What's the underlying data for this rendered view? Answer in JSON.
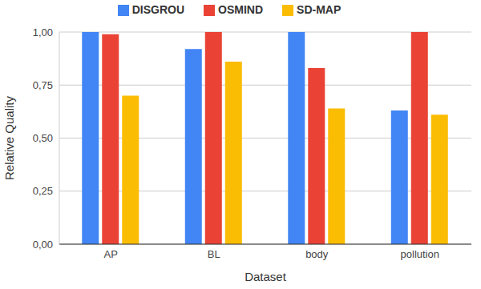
{
  "chart_data": {
    "type": "bar",
    "x_label": "Dataset",
    "y_label": "Relative Quality",
    "categories": [
      "AP",
      "BL",
      "body",
      "pollution"
    ],
    "series": [
      {
        "name": "DISGROU",
        "color": "#4285f4",
        "values": [
          1.0,
          0.92,
          1.0,
          0.63
        ]
      },
      {
        "name": "OSMIND",
        "color": "#ea4335",
        "values": [
          0.99,
          1.0,
          0.83,
          1.0
        ]
      },
      {
        "name": "SD-MAP",
        "color": "#fbbc04",
        "values": [
          0.7,
          0.86,
          0.64,
          0.61
        ]
      }
    ],
    "ylim": [
      0,
      1
    ],
    "yticks": [
      {
        "value": 0,
        "label": "0,00"
      },
      {
        "value": 0.25,
        "label": "0,25"
      },
      {
        "value": 0.5,
        "label": "0,50"
      },
      {
        "value": 0.75,
        "label": "0,75"
      },
      {
        "value": 1,
        "label": "1,00"
      }
    ],
    "grid": true,
    "legend": "top"
  }
}
